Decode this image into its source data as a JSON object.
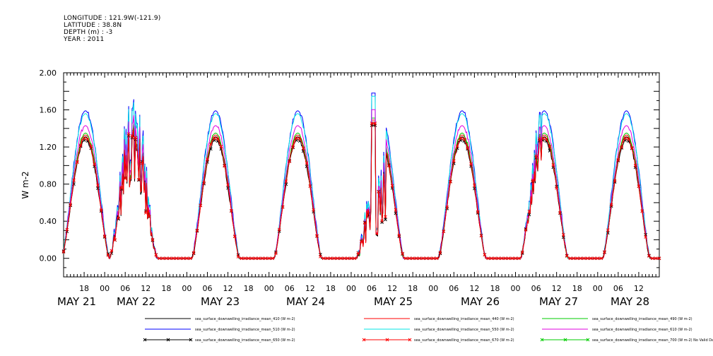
{
  "header": {
    "longitude": "LONGITUDE : 121.9W(-121.9)",
    "latitude": "LATITUDE : 38.8N",
    "depth": "DEPTH (m) : -3",
    "year": "YEAR : 2011"
  },
  "chart_data": {
    "type": "line",
    "title": "",
    "xlabel": "",
    "ylabel": "W m-2",
    "ylim": [
      -0.2,
      2.0
    ],
    "yticks": [
      "-0.20",
      "0.00",
      "0.40",
      "0.80",
      "1.20",
      "1.60",
      "2.00"
    ],
    "ytick_values": [
      0.0,
      0.4,
      0.8,
      1.2,
      1.6,
      2.0
    ],
    "ytick_labels": [
      "0.00",
      "0.40",
      "0.80",
      "1.20",
      "1.60",
      "2.00"
    ],
    "xlim_hours": [
      0,
      174
    ],
    "hour_ticks": [
      "18",
      "00",
      "06",
      "12",
      "18",
      "00",
      "06",
      "12",
      "18",
      "00",
      "06",
      "12",
      "18",
      "00",
      "06",
      "12",
      "18",
      "00",
      "06",
      "12",
      "18",
      "00",
      "06",
      "12",
      "18",
      "00",
      "06",
      "12"
    ],
    "day_labels": [
      "MAY 21",
      "MAY 22",
      "MAY 23",
      "MAY 24",
      "MAY 25",
      "MAY 26",
      "MAY 27",
      "MAY 28"
    ],
    "series": [
      {
        "name": "sea_surface_downwelling_irradiance_mean_410 (W m-2)",
        "color": "#000000",
        "marker": false,
        "peak": 1.31
      },
      {
        "name": "sea_surface_downwelling_irradiance_mean_440 (W m-2)",
        "color": "#ff0000",
        "marker": false,
        "peak": 1.33
      },
      {
        "name": "sea_surface_downwelling_irradiance_mean_490 (W m-2)",
        "color": "#00cc00",
        "marker": false,
        "peak": 1.35
      },
      {
        "name": "sea_surface_downwelling_irradiance_mean_510 (W m-2)",
        "color": "#0000ff",
        "marker": false,
        "peak": 1.59
      },
      {
        "name": "sea_surface_downwelling_irradiance_mean_550 (W m-2)",
        "color": "#00e5e5",
        "marker": false,
        "peak": 1.56
      },
      {
        "name": "sea_surface_downwelling_irradiance_mean_610 (W m-2)",
        "color": "#e000e0",
        "marker": false,
        "peak": 1.43
      },
      {
        "name": "sea_surface_downwelling_irradiance_mean_650 (W m-2)",
        "color": "#000000",
        "marker": true,
        "peak": 1.28
      },
      {
        "name": "sea_surface_downwelling_irradiance_mean_670 (W m-2)",
        "color": "#ff0000",
        "marker": true,
        "peak": 1.3
      },
      {
        "name": "sea_surface_downwelling_irradiance_mean_700 (W m-2) No Valid Data",
        "color": "#00cc00",
        "marker": true,
        "peak": 0
      }
    ],
    "grid": false,
    "legend_position": "bottom"
  }
}
